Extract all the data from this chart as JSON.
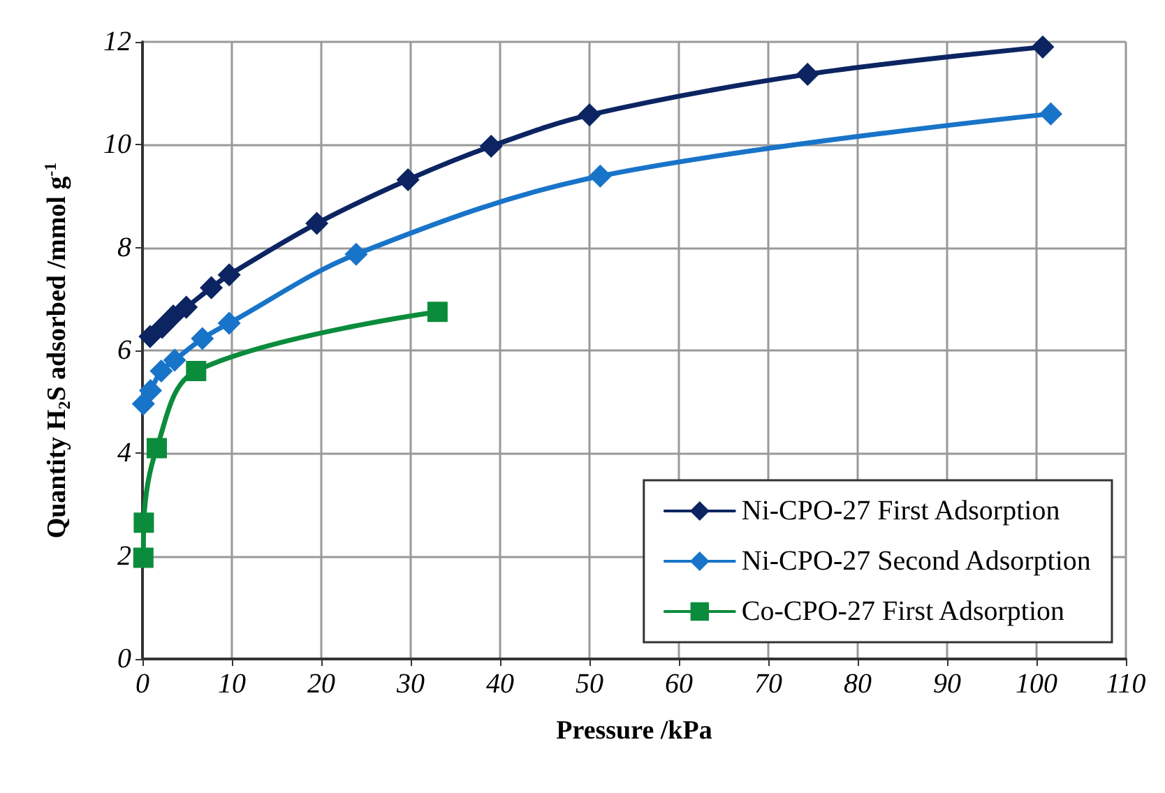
{
  "chart_data": {
    "type": "line",
    "xlabel": "Pressure /kPa",
    "ylabel": "Quantity H$_{2}$S adsorbed /mmol g$^{-1}$",
    "xlim": [
      0,
      110
    ],
    "xticks": [
      0,
      10,
      20,
      30,
      40,
      50,
      60,
      70,
      80,
      90,
      100,
      110
    ],
    "ylim": [
      0,
      12
    ],
    "yticks": [
      0,
      2,
      4,
      6,
      8,
      10,
      12
    ],
    "grid": true,
    "legend": "bottom right",
    "line_style": "solid",
    "series": [
      {
        "name": "Ni-CPO-27 First Adsorption",
        "color": "#0c2461",
        "marker": "diamond",
        "x": [
          0.85,
          2.2,
          3.45,
          4.9,
          7.7,
          9.7,
          19.5,
          29.7,
          39,
          50,
          74.4,
          100.7
        ],
        "values": [
          6.27,
          6.45,
          6.67,
          6.84,
          7.22,
          7.47,
          8.47,
          9.32,
          9.97,
          10.58,
          11.37,
          11.9
        ]
      },
      {
        "name": "Ni-CPO-27 Second Adsorption",
        "color": "#1874c8",
        "marker": "diamond",
        "x": [
          0.1,
          0.9,
          2.1,
          3.6,
          6.7,
          9.7,
          23.9,
          51.2,
          101.6
        ],
        "values": [
          4.96,
          5.22,
          5.6,
          5.81,
          6.23,
          6.53,
          7.87,
          9.39,
          10.6
        ]
      },
      {
        "name": "Co-CPO-27 First Adsorption",
        "color": "#0b8c3c",
        "marker": "square",
        "x": [
          0.1,
          0.15,
          1.6,
          6.0,
          33.0
        ],
        "values": [
          1.97,
          2.65,
          4.1,
          5.6,
          6.75
        ]
      }
    ]
  }
}
